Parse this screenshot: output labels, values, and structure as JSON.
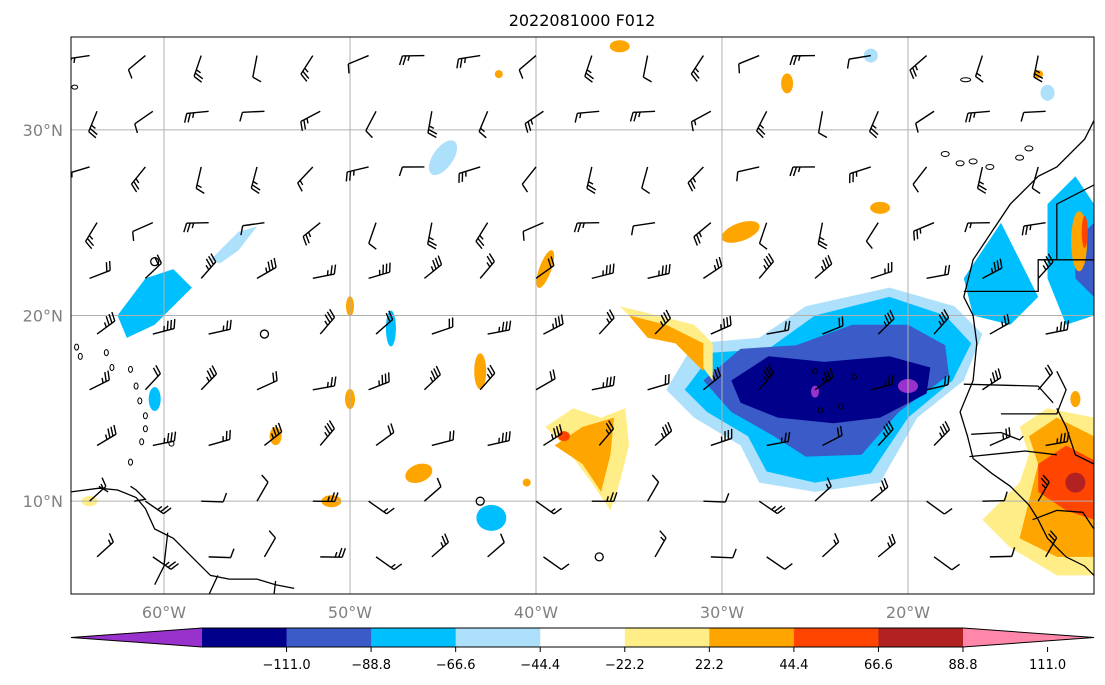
{
  "map": {
    "title": "2022081000 F012",
    "extent": {
      "lon_min": -65,
      "lon_max": -10,
      "lat_min": 5,
      "lat_max": 35
    },
    "lat_ticks": [
      {
        "value": 10,
        "label": "10°N"
      },
      {
        "value": 20,
        "label": "20°N"
      },
      {
        "value": 30,
        "label": "30°N"
      }
    ],
    "lon_ticks": [
      {
        "value": -60,
        "label": "60°W"
      },
      {
        "value": -50,
        "label": "50°W"
      },
      {
        "value": -40,
        "label": "40°W"
      },
      {
        "value": -30,
        "label": "30°W"
      },
      {
        "value": -20,
        "label": "20°W"
      }
    ],
    "gridlines": true
  },
  "colorbar": {
    "colors": [
      "#9932cc",
      "#00008b",
      "#3a5bc8",
      "#00bfff",
      "#ade0fb",
      "#ffffff",
      "#ffee88",
      "#ffa500",
      "#ff4500",
      "#b22222",
      "#ff88aa"
    ],
    "labels": [
      "−111.0",
      "−88.8",
      "−66.6",
      "−44.4",
      "−22.2",
      "22.2",
      "44.4",
      "66.6",
      "88.8",
      "111.0"
    ]
  },
  "colors": {
    "grid": "#b0b0b0",
    "coast": "#000000",
    "barb": "#000000"
  },
  "features": {
    "negative_anomaly_region_center": {
      "lon": -23,
      "lat": 16
    },
    "positive_anomaly_region_center": {
      "lon": -13,
      "lat": 12
    }
  }
}
